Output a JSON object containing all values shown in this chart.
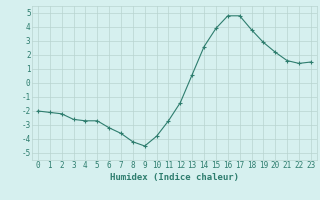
{
  "x": [
    0,
    1,
    2,
    3,
    4,
    5,
    6,
    7,
    8,
    9,
    10,
    11,
    12,
    13,
    14,
    15,
    16,
    17,
    18,
    19,
    20,
    21,
    22,
    23
  ],
  "y": [
    -2.0,
    -2.1,
    -2.2,
    -2.6,
    -2.7,
    -2.7,
    -3.2,
    -3.6,
    -4.2,
    -4.5,
    -3.8,
    -2.7,
    -1.4,
    0.6,
    2.6,
    3.9,
    4.8,
    4.8,
    3.8,
    2.9,
    2.2,
    1.6,
    1.4,
    1.5
  ],
  "xlabel": "Humidex (Indice chaleur)",
  "ylim": [
    -5.5,
    5.5
  ],
  "xlim": [
    -0.5,
    23.5
  ],
  "yticks": [
    -5,
    -4,
    -3,
    -2,
    -1,
    0,
    1,
    2,
    3,
    4,
    5
  ],
  "xticks": [
    0,
    1,
    2,
    3,
    4,
    5,
    6,
    7,
    8,
    9,
    10,
    11,
    12,
    13,
    14,
    15,
    16,
    17,
    18,
    19,
    20,
    21,
    22,
    23
  ],
  "line_color": "#2e7d6e",
  "marker_color": "#2e7d6e",
  "bg_color": "#d6f0ef",
  "grid_color": "#b8d4d0",
  "text_color": "#2e7d6e",
  "label_fontsize": 6.5,
  "tick_fontsize": 5.5
}
